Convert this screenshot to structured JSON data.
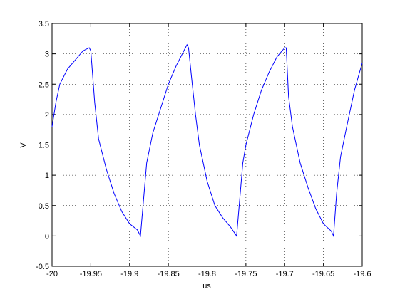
{
  "chart_data": {
    "type": "line",
    "xlabel": "us",
    "ylabel": "V",
    "x": [
      -20,
      -19.995,
      -19.99,
      -19.98,
      -19.97,
      -19.96,
      -19.952,
      -19.95,
      -19.945,
      -19.94,
      -19.93,
      -19.92,
      -19.91,
      -19.9,
      -19.89,
      -19.886,
      -19.882,
      -19.878,
      -19.87,
      -19.86,
      -19.85,
      -19.84,
      -19.83,
      -19.826,
      -19.824,
      -19.82,
      -19.815,
      -19.81,
      -19.8,
      -19.79,
      -19.78,
      -19.77,
      -19.762,
      -19.758,
      -19.754,
      -19.75,
      -19.74,
      -19.73,
      -19.72,
      -19.71,
      -19.7,
      -19.698,
      -19.695,
      -19.69,
      -19.68,
      -19.67,
      -19.66,
      -19.65,
      -19.64,
      -19.637,
      -19.633,
      -19.628,
      -19.62,
      -19.61,
      -19.6
    ],
    "series": [
      {
        "color": "#0000ff",
        "values": [
          1.8,
          2.2,
          2.5,
          2.75,
          2.9,
          3.05,
          3.1,
          3.05,
          2.2,
          1.6,
          1.1,
          0.7,
          0.4,
          0.2,
          0.1,
          0.0,
          0.6,
          1.2,
          1.7,
          2.1,
          2.5,
          2.8,
          3.05,
          3.15,
          3.1,
          2.6,
          2.0,
          1.5,
          0.9,
          0.5,
          0.3,
          0.15,
          0.0,
          0.6,
          1.2,
          1.5,
          2.0,
          2.4,
          2.7,
          2.95,
          3.1,
          3.1,
          2.3,
          1.8,
          1.2,
          0.8,
          0.45,
          0.2,
          0.08,
          0.0,
          0.7,
          1.3,
          1.8,
          2.4,
          2.85
        ]
      }
    ],
    "xlim": [
      -20,
      -19.6
    ],
    "xticks": [
      -20,
      -19.95,
      -19.9,
      -19.85,
      -19.8,
      -19.75,
      -19.7,
      -19.65,
      -19.6
    ],
    "ylim": [
      -0.5,
      3.5
    ],
    "yticks": [
      -0.5,
      0,
      0.5,
      1,
      1.5,
      2,
      2.5,
      3,
      3.5
    ],
    "grid": true
  }
}
